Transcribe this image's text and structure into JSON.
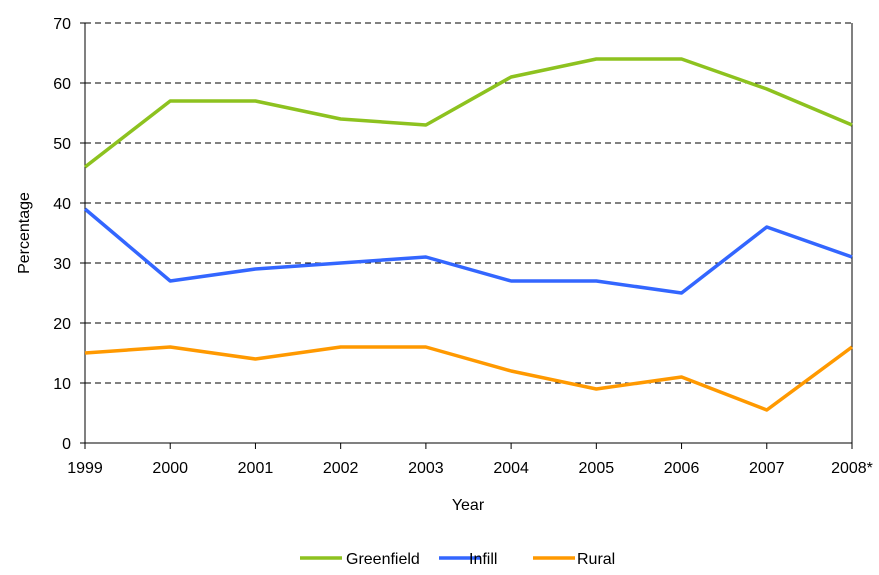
{
  "chart_data": {
    "type": "line",
    "xlabel": "Year",
    "ylabel": "Percentage",
    "categories": [
      "1999",
      "2000",
      "2001",
      "2002",
      "2003",
      "2004",
      "2005",
      "2006",
      "2007",
      "2008*"
    ],
    "ylim": [
      0,
      70
    ],
    "yticks": [
      0,
      10,
      20,
      30,
      40,
      50,
      60,
      70
    ],
    "grid": "horizontal dashed",
    "legend_position": "bottom",
    "series": [
      {
        "name": "Greenfield",
        "color": "#8DC21F",
        "values": [
          46,
          57,
          57,
          54,
          53,
          61,
          64,
          64,
          59,
          53
        ]
      },
      {
        "name": "Infill",
        "color": "#3366FF",
        "values": [
          39,
          27,
          29,
          30,
          31,
          27,
          27,
          25,
          36,
          31
        ]
      },
      {
        "name": "Rural",
        "color": "#FF9900",
        "values": [
          15,
          16,
          14,
          16,
          16,
          12,
          9,
          11,
          5.5,
          16
        ]
      }
    ]
  }
}
